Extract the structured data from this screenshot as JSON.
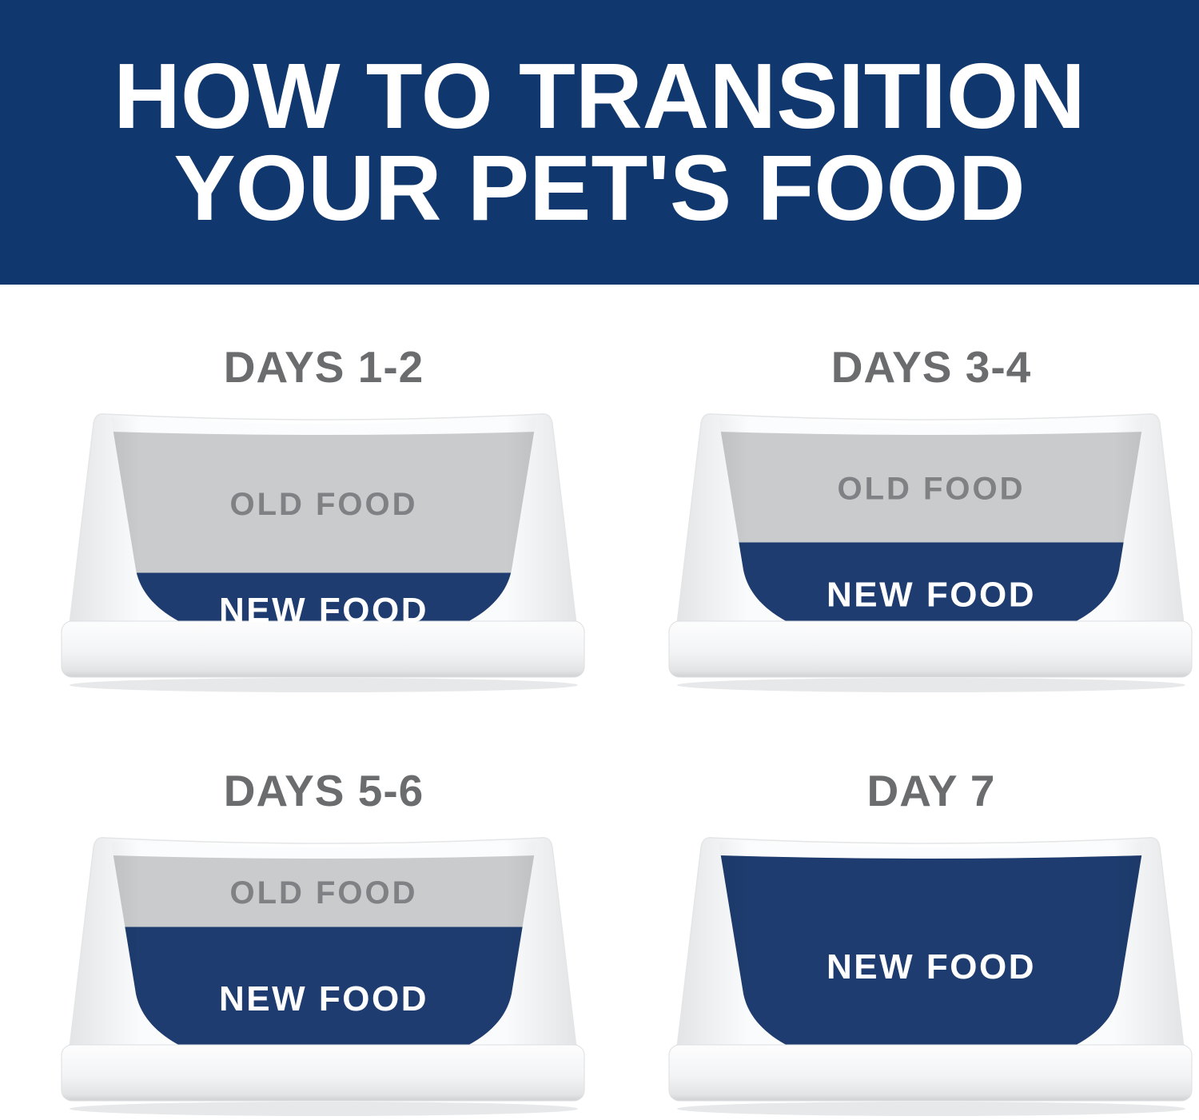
{
  "header": {
    "title_lines": [
      "HOW TO TRANSITION",
      "YOUR PET'S FOOD"
    ]
  },
  "days": [
    {
      "title": "DAYS 1-2",
      "old_label": "OLD FOOD",
      "new_label": "NEW FOOD",
      "new_food_level_pct": 34
    },
    {
      "title": "DAYS 3-4",
      "old_label": "OLD FOOD",
      "new_label": "NEW FOOD",
      "new_food_level_pct": 48
    },
    {
      "title": "DAYS 5-6",
      "old_label": "OLD FOOD",
      "new_label": "NEW FOOD",
      "new_food_level_pct": 66
    },
    {
      "title": "DAY 7",
      "old_label": null,
      "new_label": "NEW FOOD",
      "new_food_level_pct": 100
    }
  ],
  "colors": {
    "header_bg": "#10386f",
    "new_food": "#1e3c6f",
    "old_food": "#c9cbcd",
    "old_food_text": "#7f8184",
    "day_title_text": "#6b6c6e",
    "background": "#ffffff"
  }
}
